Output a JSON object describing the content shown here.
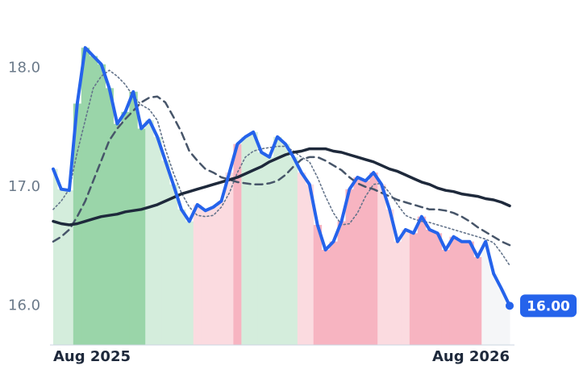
{
  "chart_data": {
    "type": "line",
    "categories": [
      "Aug 2025",
      null,
      null,
      null,
      null,
      null,
      null,
      null,
      null,
      null,
      null,
      null,
      null,
      null,
      null,
      null,
      null,
      null,
      null,
      null,
      null,
      null,
      null,
      null,
      null,
      null,
      null,
      null,
      null,
      null,
      null,
      null,
      null,
      null,
      null,
      null,
      null,
      null,
      null,
      null,
      null,
      null,
      null,
      null,
      null,
      null,
      null,
      null,
      null,
      null,
      null,
      null,
      null,
      null,
      null,
      null,
      null,
      "Aug 2026"
    ],
    "series": [
      {
        "color": "#2563eb",
        "style": "solid",
        "width": 4,
        "values": [
          17.15,
          16.98,
          16.97,
          17.7,
          18.17,
          18.1,
          18.03,
          17.83,
          17.53,
          17.63,
          17.8,
          17.49,
          17.56,
          17.42,
          17.22,
          17.02,
          16.81,
          16.71,
          16.85,
          16.8,
          16.83,
          16.88,
          17.12,
          17.36,
          17.42,
          17.46,
          17.29,
          17.25,
          17.42,
          17.36,
          17.25,
          17.12,
          17.02,
          16.68,
          16.47,
          16.54,
          16.71,
          16.98,
          17.08,
          17.05,
          17.12,
          17.02,
          16.81,
          16.54,
          16.64,
          16.61,
          16.75,
          16.64,
          16.61,
          16.47,
          16.58,
          16.54,
          16.54,
          16.41,
          16.54,
          16.27,
          16.14,
          16.0
        ],
        "value_labels": [
          null,
          null,
          null,
          null,
          null,
          null,
          null,
          null,
          null,
          null,
          null,
          null,
          null,
          null,
          null,
          null,
          null,
          null,
          null,
          null,
          null,
          null,
          null,
          null,
          null,
          null,
          null,
          null,
          null,
          null,
          null,
          null,
          null,
          null,
          null,
          null,
          null,
          null,
          null,
          null,
          null,
          null,
          null,
          null,
          null,
          null,
          null,
          null,
          null,
          null,
          null,
          null,
          null,
          null,
          null,
          null,
          null,
          "16.00"
        ]
      },
      {
        "color": "#1e293b",
        "style": "solid",
        "width": 3.5,
        "values": [
          16.71,
          16.69,
          16.68,
          16.69,
          16.71,
          16.73,
          16.75,
          16.76,
          16.77,
          16.79,
          16.8,
          16.81,
          16.83,
          16.85,
          16.88,
          16.91,
          16.94,
          16.96,
          16.98,
          17.0,
          17.02,
          17.04,
          17.06,
          17.08,
          17.11,
          17.14,
          17.17,
          17.21,
          17.24,
          17.27,
          17.29,
          17.3,
          17.32,
          17.32,
          17.32,
          17.3,
          17.29,
          17.27,
          17.25,
          17.23,
          17.21,
          17.18,
          17.15,
          17.13,
          17.1,
          17.07,
          17.04,
          17.02,
          16.99,
          16.97,
          16.96,
          16.94,
          16.93,
          16.92,
          16.9,
          16.89,
          16.87,
          16.84
        ]
      },
      {
        "color": "#475569",
        "style": "dashed",
        "width": 2.5,
        "values": [
          16.54,
          16.58,
          16.64,
          16.75,
          16.88,
          17.05,
          17.22,
          17.39,
          17.49,
          17.57,
          17.64,
          17.71,
          17.75,
          17.76,
          17.71,
          17.59,
          17.46,
          17.3,
          17.22,
          17.15,
          17.12,
          17.08,
          17.06,
          17.04,
          17.03,
          17.02,
          17.02,
          17.03,
          17.05,
          17.1,
          17.17,
          17.23,
          17.25,
          17.25,
          17.22,
          17.18,
          17.14,
          17.08,
          17.03,
          17.0,
          16.98,
          16.95,
          16.92,
          16.89,
          16.87,
          16.85,
          16.83,
          16.81,
          16.81,
          16.8,
          16.78,
          16.75,
          16.71,
          16.66,
          16.62,
          16.58,
          16.54,
          16.51
        ]
      },
      {
        "color": "#64748b",
        "style": "dotted",
        "width": 1.6,
        "values": [
          16.81,
          16.88,
          16.98,
          17.29,
          17.56,
          17.83,
          17.93,
          17.98,
          17.93,
          17.86,
          17.76,
          17.69,
          17.65,
          17.56,
          17.32,
          17.12,
          16.95,
          16.83,
          16.76,
          16.75,
          16.76,
          16.83,
          16.95,
          17.12,
          17.25,
          17.3,
          17.32,
          17.33,
          17.34,
          17.34,
          17.3,
          17.25,
          17.21,
          17.08,
          16.92,
          16.78,
          16.68,
          16.69,
          16.78,
          16.92,
          17.02,
          17.03,
          16.95,
          16.85,
          16.76,
          16.73,
          16.71,
          16.7,
          16.68,
          16.66,
          16.64,
          16.62,
          16.6,
          16.58,
          16.56,
          16.53,
          16.44,
          16.34
        ]
      }
    ],
    "shading": [
      "#d4eddc",
      "#d4eddc",
      "#d4eddc",
      "#9ad5a9",
      "#9ad5a9",
      "#9ad5a9",
      "#9ad5a9",
      "#9ad5a9",
      "#9ad5a9",
      "#9ad5a9",
      "#9ad5a9",
      "#9ad5a9",
      "#d4eddc",
      "#d4eddc",
      "#d4eddc",
      "#d4eddc",
      "#d4eddc",
      "#d4eddc",
      "#fbdbe0",
      "#fbdbe0",
      "#fbdbe0",
      "#fbdbe0",
      "#fbdbe0",
      "#f7b4c1",
      "#d4eddc",
      "#d4eddc",
      "#d4eddc",
      "#d4eddc",
      "#d4eddc",
      "#d4eddc",
      "#d4eddc",
      "#fbdbe0",
      "#fbdbe0",
      "#f7b4c1",
      "#f7b4c1",
      "#f7b4c1",
      "#f7b4c1",
      "#f7b4c1",
      "#f7b4c1",
      "#f7b4c1",
      "#f7b4c1",
      "#fbdbe0",
      "#fbdbe0",
      "#fbdbe0",
      "#fbdbe0",
      "#f7b4c1",
      "#f7b4c1",
      "#f7b4c1",
      "#f7b4c1",
      "#f7b4c1",
      "#f7b4c1",
      "#f7b4c1",
      "#f7b4c1",
      "#f7b4c1",
      "#f5f6f8",
      "#f5f6f8",
      "#f5f6f8",
      "#f5f6f8"
    ],
    "ylim": [
      15.67,
      18.3
    ],
    "yticks": [
      {
        "value": 16,
        "label": "16.0"
      },
      {
        "value": 17,
        "label": "17.0"
      },
      {
        "value": 18,
        "label": "18.0"
      }
    ],
    "grid": false
  }
}
